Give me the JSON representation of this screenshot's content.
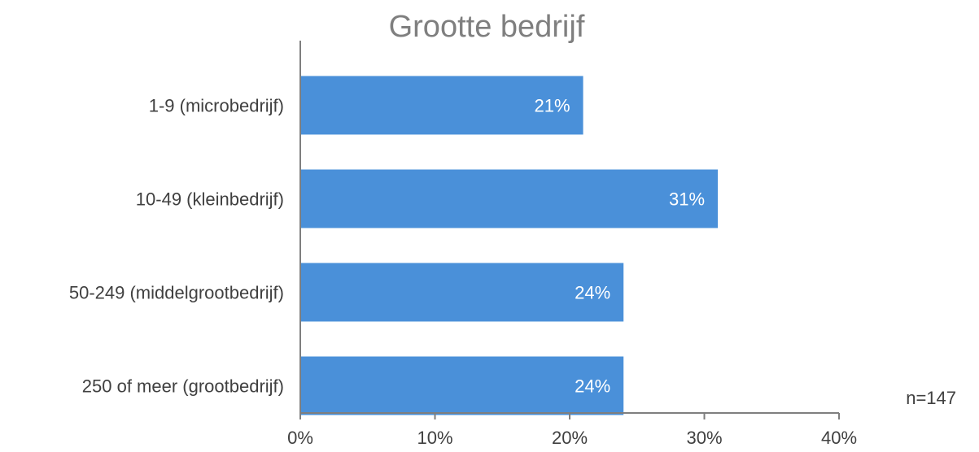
{
  "chart_data": {
    "type": "bar",
    "orientation": "horizontal",
    "title": "Grootte bedrijf",
    "categories": [
      "1-9 (microbedrijf)",
      "10-49 (kleinbedrijf)",
      "50-249 (middelgrootbedrijf)",
      "250 of meer (grootbedrijf)"
    ],
    "values": [
      21,
      31,
      24,
      24
    ],
    "data_labels": [
      "21%",
      "31%",
      "24%",
      "24%"
    ],
    "xlim": [
      0,
      40
    ],
    "x_ticks": [
      0,
      10,
      20,
      30,
      40
    ],
    "x_tick_labels": [
      "0%",
      "10%",
      "20%",
      "30%",
      "40%"
    ],
    "grid": false,
    "bar_color": "#4a90d9",
    "axis_color": "#7f7f7f",
    "note": "n=147"
  }
}
